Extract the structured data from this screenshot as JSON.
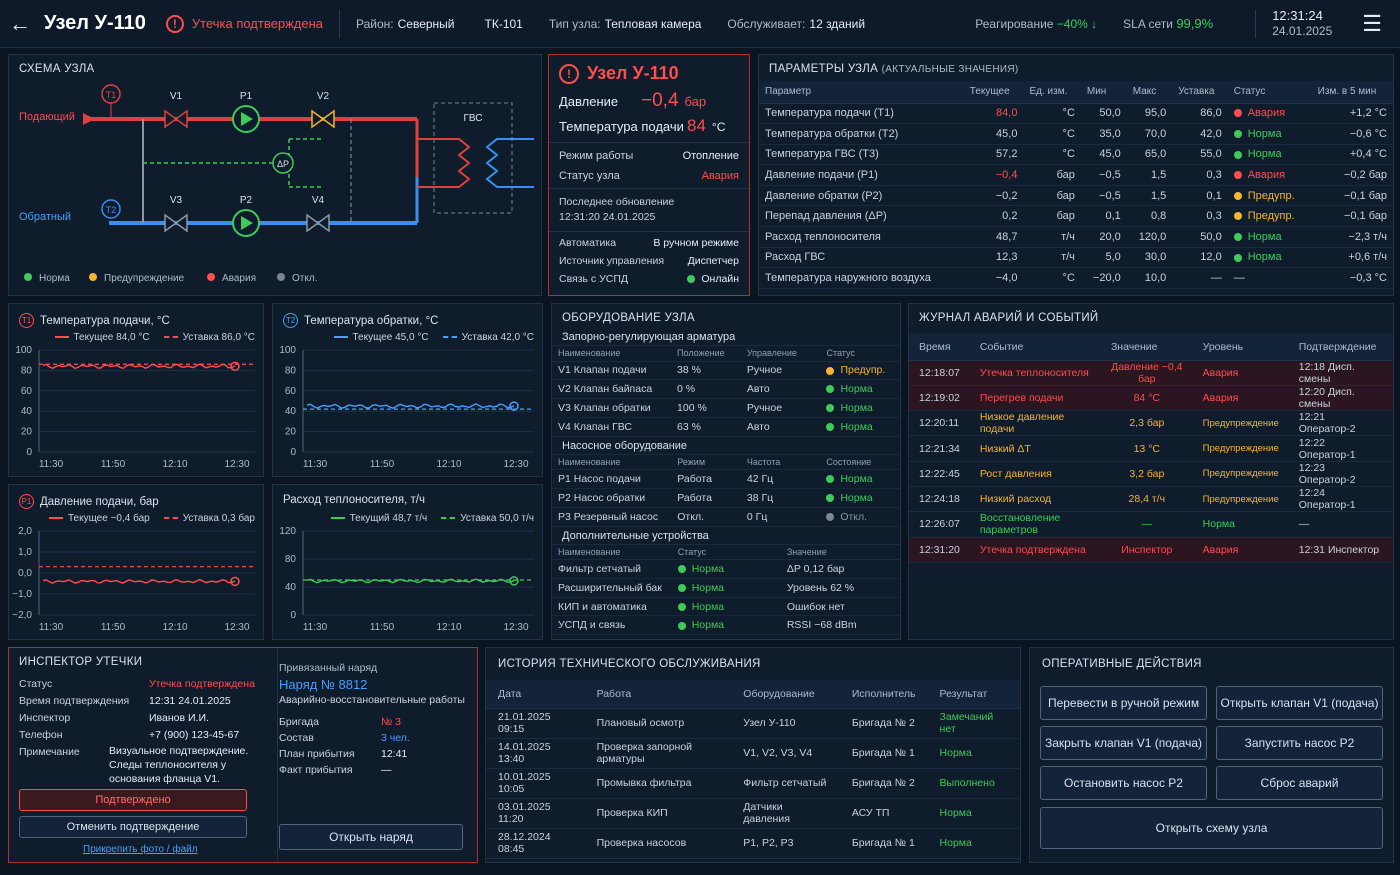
{
  "header": {
    "back_icon": "arrow-left-icon",
    "title": "Узел У-110",
    "alarm_text": "Утечка подтверждена",
    "district_label": "Район:",
    "district": "Северный",
    "tk": "ТК-101",
    "type_label": "Тип узла:",
    "type": "Тепловая камера",
    "serves_label": "Обслуживает:",
    "serves": "12 зданий",
    "reaction_label": "Реагирование",
    "reaction": "−40% ↓",
    "sla_label": "SLA сети",
    "sla": "99,9%",
    "time": "12:31:24",
    "date": "24.01.2025"
  },
  "schema": {
    "title": "СХЕМА УЗЛА",
    "supply": "Подающий",
    "return": "Обратный",
    "gvs": "ГВС",
    "labels": {
      "t1": "T1",
      "t2": "T2",
      "v1": "V1",
      "v2": "V2",
      "v3": "V3",
      "v4": "V4",
      "p1": "P1",
      "p2": "P2",
      "dp": "ΔP"
    },
    "legend": [
      "Норма",
      "Предупреждение",
      "Авария",
      "Откл."
    ]
  },
  "node": {
    "title": "Узел У-110",
    "pressure_label": "Давление",
    "pressure": "−0,4",
    "pressure_unit": "бар",
    "temp_label": "Температура подачи",
    "temp": "84",
    "temp_unit": "°C",
    "mode_label": "Режим работы",
    "mode": "Отопление",
    "status_label": "Статус узла",
    "status": "Авария",
    "update_label": "Последнее обновление",
    "update": "12:31:20  24.01.2025",
    "auto_label": "Автоматика",
    "auto": "В ручном режиме",
    "src_label": "Источник управления",
    "src": "Диспетчер",
    "uspd_label": "Связь с УСПД",
    "uspd": "Онлайн"
  },
  "params": {
    "title": "ПАРАМЕТРЫ  УЗЛА",
    "subtitle": "(АКТУАЛЬНЫЕ ЗНАЧЕНИЯ)",
    "headers": [
      "Параметр",
      "Текущее",
      "Ед. изм.",
      "Мин",
      "Макс",
      "Уставка",
      "Статус",
      "Изм. в 5 мин"
    ],
    "rows": [
      [
        "Температура подачи (T1)",
        "84,0",
        "°C",
        "50,0",
        "95,0",
        "86,0",
        "Авария",
        "+1,2 °C"
      ],
      [
        "Температура обратки (T2)",
        "45,0",
        "°C",
        "35,0",
        "70,0",
        "42,0",
        "Норма",
        "−0,6 °C"
      ],
      [
        "Температура ГВС (T3)",
        "57,2",
        "°C",
        "45,0",
        "65,0",
        "55,0",
        "Норма",
        "+0,4 °C"
      ],
      [
        "Давление подачи (P1)",
        "−0,4",
        "бар",
        "−0,5",
        "1,5",
        "0,3",
        "Авария",
        "−0,2 бар"
      ],
      [
        "Давление обратки (P2)",
        "−0,2",
        "бар",
        "−0,5",
        "1,5",
        "0,1",
        "Предупр.",
        "−0,1 бар"
      ],
      [
        "Перепад давления (ΔP)",
        "0,2",
        "бар",
        "0,1",
        "0,8",
        "0,3",
        "Предупр.",
        "−0,1 бар"
      ],
      [
        "Расход теплоносителя",
        "48,7",
        "т/ч",
        "20,0",
        "120,0",
        "50,0",
        "Норма",
        "−2,3 т/ч"
      ],
      [
        "Расход ГВС",
        "12,3",
        "т/ч",
        "5,0",
        "30,0",
        "12,0",
        "Норма",
        "+0,6 т/ч"
      ],
      [
        "Температура наружного воздуха",
        "−4,0",
        "°C",
        "−20,0",
        "10,0",
        "—",
        "—",
        "−0,3 °C"
      ]
    ]
  },
  "charts": [
    {
      "title": "Температура подачи, °C",
      "icon": "T1",
      "current_label": "Текущее  84,0 °C",
      "set_label": "Уставка  86,0 °C"
    },
    {
      "title": "Температура обратки, °C",
      "icon": "T2",
      "current_label": "Текущее 45,0 °C",
      "set_label": "Уставка  42,0 °C"
    },
    {
      "title": "Давление подачи, бар",
      "icon": "P1",
      "current_label": "Текущее  −0,4  бар",
      "set_label": "Уставка  0,3 бар"
    },
    {
      "title": "Расход теплоносителя, т/ч",
      "icon": "",
      "current_label": "Текущий 48,7 т/ч",
      "set_label": "Уставка 50,0 т/ч"
    }
  ],
  "chart_data": [
    {
      "type": "line",
      "title": "Температура подачи, °C",
      "x": [
        "11:30",
        "11:50",
        "12:10",
        "12:30"
      ],
      "ylim": [
        0,
        100
      ],
      "yticks": [
        0,
        20,
        40,
        60,
        80,
        100
      ],
      "series": [
        {
          "name": "Текущее",
          "last": 84.0
        },
        {
          "name": "Уставка",
          "value": 86.0
        }
      ],
      "colors": {
        "current": "#ff4d4d",
        "set": "#ff4d4d"
      }
    },
    {
      "type": "line",
      "title": "Температура обратки, °C",
      "x": [
        "11:30",
        "11:50",
        "12:10",
        "12:30"
      ],
      "ylim": [
        0,
        100
      ],
      "yticks": [
        0,
        20,
        40,
        60,
        80,
        100
      ],
      "series": [
        {
          "name": "Текущее",
          "last": 45.0
        },
        {
          "name": "Уставка",
          "value": 42.0
        }
      ],
      "colors": {
        "current": "#4a9eff",
        "set": "#4a9eff"
      }
    },
    {
      "type": "line",
      "title": "Давление подачи, бар",
      "x": [
        "11:30",
        "11:50",
        "12:10",
        "12:30"
      ],
      "ylim": [
        -2.0,
        2.0
      ],
      "yticks": [
        -2.0,
        -1.0,
        0.0,
        1.0,
        2.0
      ],
      "ytick_labels": [
        "−2,0",
        "−1,0",
        "0,0",
        "1,0",
        "2,0"
      ],
      "series": [
        {
          "name": "Текущее",
          "last": -0.4
        },
        {
          "name": "Уставка",
          "value": 0.3
        }
      ],
      "colors": {
        "current": "#ff4d4d",
        "set": "#ff4d4d"
      }
    },
    {
      "type": "line",
      "title": "Расход теплоносителя, т/ч",
      "x": [
        "11:30",
        "11:50",
        "12:10",
        "12:30"
      ],
      "ylim": [
        0,
        120
      ],
      "yticks": [
        0,
        40,
        80,
        120
      ],
      "series": [
        {
          "name": "Текущий",
          "last": 48.7
        },
        {
          "name": "Уставка",
          "value": 50.0
        }
      ],
      "colors": {
        "current": "#3ecb5a",
        "set": "#3ecb5a"
      }
    }
  ],
  "equipment": {
    "title": "ОБОРУДОВАНИЕ УЗЛА",
    "valves_title": "Запорно-регулирующая арматура",
    "valves_headers": [
      "Наименование",
      "Положение",
      "Управление",
      "Статус"
    ],
    "valves": [
      [
        "V1 Клапан подачи",
        "38 %",
        "Ручное",
        "Предупр."
      ],
      [
        "V2 Клапан байпаса",
        "0 %",
        "Авто",
        "Норма"
      ],
      [
        "V3 Клапан обратки",
        "100 %",
        "Ручное",
        "Норма"
      ],
      [
        "V4 Клапан ГВС",
        "63 %",
        "Авто",
        "Норма"
      ]
    ],
    "pumps_title": "Насосное оборудование",
    "pumps_headers": [
      "Наименование",
      "Режим",
      "Частота",
      "Состояние"
    ],
    "pumps": [
      [
        "P1 Насос подачи",
        "Работа",
        "42 Гц",
        "Норма"
      ],
      [
        "P2 Насос обратки",
        "Работа",
        "38 Гц",
        "Норма"
      ],
      [
        "P3 Резервный насос",
        "Откл.",
        "0 Гц",
        "Откл."
      ]
    ],
    "extra_title": "Дополнительные устройства",
    "extra_headers": [
      "Наименование",
      "Статус",
      "Значение"
    ],
    "extra": [
      [
        "Фильтр сетчатый",
        "Норма",
        "ΔP  0,12 бар"
      ],
      [
        "Расширительный бак",
        "Норма",
        "Уровень  62 %"
      ],
      [
        "КИП и автоматика",
        "Норма",
        "Ошибок нет"
      ],
      [
        "УСПД и связь",
        "Норма",
        "RSSI  −68 dBm"
      ]
    ]
  },
  "journal": {
    "title": "ЖУРНАЛ АВАРИЙ И СОБЫТИЙ",
    "headers": [
      "Время",
      "Событие",
      "Значение",
      "Уровень",
      "Подтверждение"
    ],
    "rows": [
      [
        "12:18:07",
        "Утечка теплоносителя",
        "Давление −0,4 бар",
        "Авария",
        "12:18  Дисп. смены"
      ],
      [
        "12:19:02",
        "Перегрев подачи",
        "84 °C",
        "Авария",
        "12:20  Дисп. смены"
      ],
      [
        "12:20:11",
        "Низкое давление подачи",
        "2,3 бар",
        "Предупреждение",
        "12:21  Оператор-2"
      ],
      [
        "12:21:34",
        "Низкий ΔT",
        "13 °C",
        "Предупреждение",
        "12:22  Оператор-1"
      ],
      [
        "12:22:45",
        "Рост давления",
        "3,2 бар",
        "Предупреждение",
        "12:23  Оператор-2"
      ],
      [
        "12:24:18",
        "Низкий расход",
        "28,4 т/ч",
        "Предупреждение",
        "12:24  Оператор-1"
      ],
      [
        "12:26:07",
        "Восстановление параметров",
        "—",
        "Норма",
        "—"
      ],
      [
        "12:31:20",
        "Утечка подтверждена",
        "Инспектор",
        "Авария",
        "12:31  Инспектор"
      ]
    ]
  },
  "inspector": {
    "title": "ИНСПЕКТОР  УТЕЧКИ",
    "status_label": "Статус",
    "status": "Утечка подтверждена",
    "time_label": "Время подтверждения",
    "time": "12:31 24.01.2025",
    "inspector_label": "Инспектор",
    "inspector": "Иванов И.И.",
    "phone_label": "Телефон",
    "phone": "+7 (900) 123-45-67",
    "note_label": "Примечание",
    "note": "Визуальное подтверждение. Следы теплоносителя у основания фланца V1.",
    "confirmed_btn": "Подтверждено",
    "cancel_btn": "Отменить подтверждение",
    "attach_link": "Прикрепить фото / файл",
    "order_label": "Привязанный наряд",
    "order": "Наряд № 8812",
    "order_type": "Аварийно-восстановительные работы",
    "brigade_label": "Бригада",
    "brigade": "№ 3",
    "staff_label": "Состав",
    "staff": "3 чел.",
    "plan_label": "План прибытия",
    "plan": "12:41",
    "fact_label": "Факт прибытия",
    "fact": "—",
    "open_btn": "Открыть наряд"
  },
  "history": {
    "title": "ИСТОРИЯ ТЕХНИЧЕСКОГО ОБСЛУЖИВАНИЯ",
    "headers": [
      "Дата",
      "Работа",
      "Оборудование",
      "Исполнитель",
      "Результат"
    ],
    "rows": [
      [
        "21.01.2025  09:15",
        "Плановый осмотр",
        "Узел У-110",
        "Бригада № 2",
        "Замечаний нет"
      ],
      [
        "14.01.2025  13:40",
        "Проверка запорной арматуры",
        "V1, V2, V3, V4",
        "Бригада № 1",
        "Норма"
      ],
      [
        "10.01.2025  10:05",
        "Промывка фильтра",
        "Фильтр сетчатый",
        "Бригада № 2",
        "Выполнено"
      ],
      [
        "03.01.2025  11:20",
        "Проверка КИП",
        "Датчики давления",
        "АСУ ТП",
        "Норма"
      ],
      [
        "28.12.2024  08:45",
        "Проверка насосов",
        "P1, P2, P3",
        "Бригада № 1",
        "Норма"
      ]
    ]
  },
  "actions": {
    "title": "ОПЕРАТИВНЫЕ ДЕЙСТВИЯ",
    "buttons": [
      "Перевести в ручной режим",
      "Открыть клапан V1 (подача)",
      "Закрыть клапан V1 (подача)",
      "Запустить насос P2",
      "Остановить насос P2",
      "Сброс аварий",
      "Открыть схему узла"
    ]
  }
}
